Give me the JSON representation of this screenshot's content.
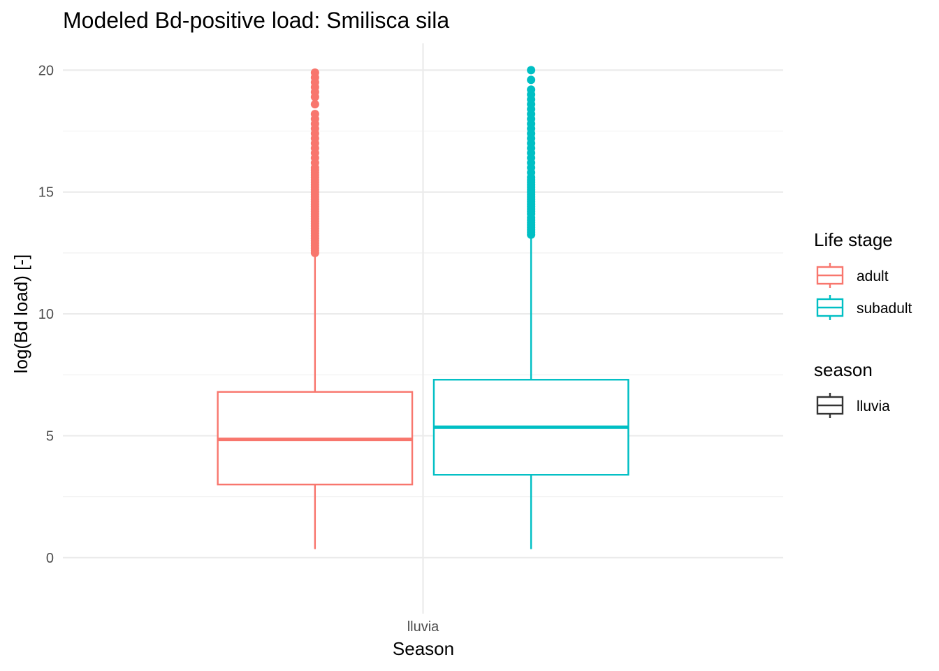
{
  "chart_data": {
    "type": "boxplot",
    "title": "Modeled Bd-positive load: Smilisca sila",
    "xlabel": "Season",
    "ylabel": "log(Bd load) [-]",
    "categories": [
      "lluvia"
    ],
    "ylim": [
      -2.3,
      21.1
    ],
    "yticks": [
      0,
      5,
      10,
      15,
      20
    ],
    "grid": true,
    "legend_position": "right",
    "legends": [
      {
        "title": "Life stage",
        "entries": [
          "adult",
          "subadult"
        ]
      },
      {
        "title": "season",
        "entries": [
          "lluvia"
        ]
      }
    ],
    "series": [
      {
        "name": "adult",
        "color": "#f8766d",
        "category": "lluvia",
        "whisker_low": 0.35,
        "q1": 3.0,
        "median": 4.85,
        "q3": 6.8,
        "whisker_high": 12.45,
        "outliers": [
          12.5,
          12.6,
          12.7,
          12.8,
          12.9,
          13.0,
          13.1,
          13.2,
          13.3,
          13.4,
          13.5,
          13.6,
          13.7,
          13.8,
          13.9,
          14.0,
          14.1,
          14.2,
          14.3,
          14.4,
          14.5,
          14.6,
          14.7,
          14.8,
          14.9,
          15.0,
          15.1,
          15.2,
          15.3,
          15.4,
          15.5,
          15.6,
          15.7,
          15.8,
          15.9,
          16.0,
          16.2,
          16.4,
          16.6,
          16.8,
          17.0,
          17.2,
          17.4,
          17.6,
          17.8,
          18.0,
          18.2,
          18.6,
          18.9,
          19.1,
          19.3,
          19.5,
          19.7,
          19.9
        ]
      },
      {
        "name": "subadult",
        "color": "#00bfc4",
        "category": "lluvia",
        "whisker_low": 0.35,
        "q1": 3.4,
        "median": 5.35,
        "q3": 7.3,
        "whisker_high": 13.2,
        "outliers": [
          13.25,
          13.35,
          13.45,
          13.55,
          13.65,
          13.75,
          13.85,
          13.95,
          14.1,
          14.2,
          14.3,
          14.4,
          14.5,
          14.6,
          14.7,
          14.8,
          14.9,
          15.0,
          15.1,
          15.2,
          15.3,
          15.4,
          15.5,
          15.6,
          15.8,
          16.0,
          16.2,
          16.4,
          16.6,
          16.8,
          17.0,
          17.2,
          17.4,
          17.6,
          17.8,
          18.0,
          18.2,
          18.4,
          18.6,
          18.8,
          19.0,
          19.2,
          19.6,
          20.0
        ]
      }
    ]
  }
}
